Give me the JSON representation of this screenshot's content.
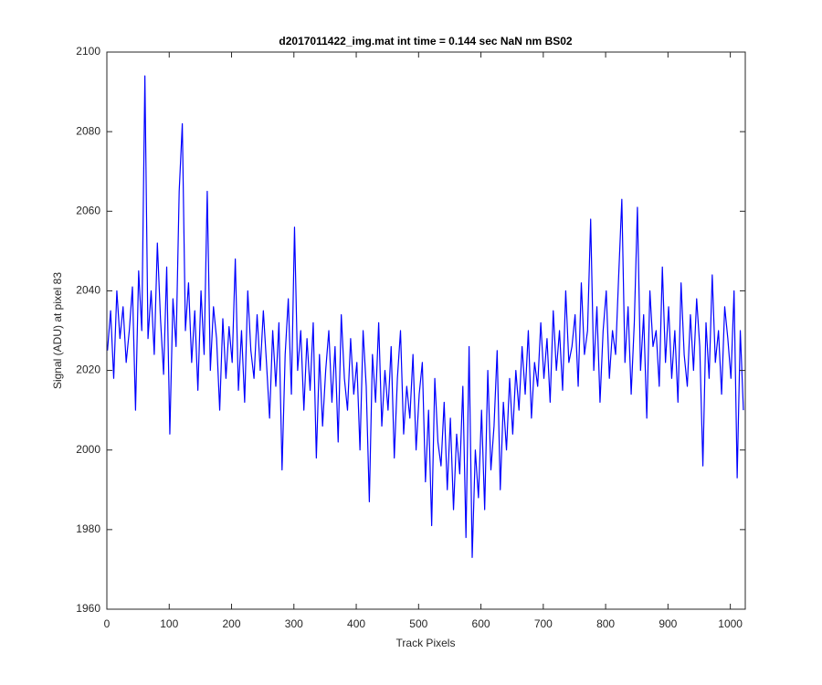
{
  "chart_data": {
    "type": "line",
    "title": "d2017011422_img.mat int time = 0.144 sec  NaN nm BS02",
    "x_label": "Track Pixels",
    "y_label": "Signal (ADU) at pixel 83",
    "xlim": [
      0,
      1024
    ],
    "ylim": [
      1960,
      2100
    ],
    "xticks": [
      0,
      100,
      200,
      300,
      400,
      500,
      600,
      700,
      800,
      900,
      1000
    ],
    "yticks": [
      1960,
      1980,
      2000,
      2020,
      2040,
      2060,
      2080,
      2100
    ],
    "x": [
      1,
      6,
      11,
      16,
      21,
      26,
      31,
      36,
      41,
      46,
      51,
      56,
      61,
      66,
      71,
      76,
      81,
      86,
      91,
      96,
      101,
      106,
      111,
      116,
      121,
      126,
      131,
      136,
      141,
      146,
      151,
      156,
      161,
      166,
      171,
      176,
      181,
      186,
      191,
      196,
      201,
      206,
      211,
      216,
      221,
      226,
      231,
      236,
      241,
      246,
      251,
      256,
      261,
      266,
      271,
      276,
      281,
      286,
      291,
      296,
      301,
      306,
      311,
      316,
      321,
      326,
      331,
      336,
      341,
      346,
      351,
      356,
      361,
      366,
      371,
      376,
      381,
      386,
      391,
      396,
      401,
      406,
      411,
      416,
      421,
      426,
      431,
      436,
      441,
      446,
      451,
      456,
      461,
      466,
      471,
      476,
      481,
      486,
      491,
      496,
      501,
      506,
      511,
      516,
      521,
      526,
      531,
      536,
      541,
      546,
      551,
      556,
      561,
      566,
      571,
      576,
      581,
      586,
      591,
      596,
      601,
      606,
      611,
      616,
      621,
      626,
      631,
      636,
      641,
      646,
      651,
      656,
      661,
      666,
      671,
      676,
      681,
      686,
      691,
      696,
      701,
      706,
      711,
      716,
      721,
      726,
      731,
      736,
      741,
      746,
      751,
      756,
      761,
      766,
      771,
      776,
      781,
      786,
      791,
      796,
      801,
      806,
      811,
      816,
      821,
      826,
      831,
      836,
      841,
      846,
      851,
      856,
      861,
      866,
      871,
      876,
      881,
      886,
      891,
      896,
      901,
      906,
      911,
      916,
      921,
      926,
      931,
      936,
      941,
      946,
      951,
      956,
      961,
      966,
      971,
      976,
      981,
      986,
      991,
      996,
      1001,
      1006,
      1011,
      1016,
      1021
    ],
    "series": [
      {
        "name": "signal",
        "color": "#0000ff",
        "values": [
          2025,
          2035,
          2018,
          2040,
          2028,
          2036,
          2022,
          2030,
          2041,
          2010,
          2045,
          2030,
          2094,
          2028,
          2040,
          2024,
          2052,
          2033,
          2019,
          2046,
          2004,
          2038,
          2026,
          2065,
          2082,
          2030,
          2042,
          2022,
          2035,
          2015,
          2040,
          2024,
          2065,
          2020,
          2036,
          2028,
          2010,
          2033,
          2018,
          2031,
          2022,
          2048,
          2015,
          2030,
          2012,
          2040,
          2025,
          2018,
          2034,
          2020,
          2035,
          2022,
          2008,
          2030,
          2016,
          2032,
          1995,
          2024,
          2038,
          2014,
          2056,
          2020,
          2030,
          2010,
          2028,
          2015,
          2032,
          1998,
          2024,
          2006,
          2020,
          2030,
          2012,
          2026,
          2002,
          2034,
          2018,
          2010,
          2028,
          2014,
          2022,
          2000,
          2030,
          2016,
          1987,
          2024,
          2012,
          2032,
          2006,
          2020,
          2010,
          2026,
          1998,
          2018,
          2030,
          2004,
          2016,
          2008,
          2024,
          2000,
          2014,
          2022,
          1992,
          2010,
          1981,
          2018,
          2002,
          1996,
          2012,
          1990,
          2008,
          1985,
          2004,
          1994,
          2016,
          1978,
          2026,
          1973,
          2000,
          1988,
          2010,
          1985,
          2020,
          1995,
          2006,
          2025,
          1990,
          2012,
          2000,
          2018,
          2004,
          2020,
          2010,
          2026,
          2014,
          2030,
          2008,
          2022,
          2016,
          2032,
          2018,
          2028,
          2012,
          2035,
          2020,
          2030,
          2015,
          2040,
          2022,
          2026,
          2034,
          2016,
          2042,
          2024,
          2030,
          2058,
          2020,
          2036,
          2012,
          2030,
          2040,
          2018,
          2030,
          2024,
          2044,
          2063,
          2022,
          2036,
          2014,
          2032,
          2061,
          2020,
          2034,
          2008,
          2040,
          2026,
          2030,
          2016,
          2046,
          2022,
          2036,
          2018,
          2030,
          2012,
          2042,
          2024,
          2016,
          2034,
          2020,
          2038,
          2026,
          1996,
          2032,
          2018,
          2044,
          2022,
          2030,
          2014,
          2036,
          2028,
          2018,
          2040,
          1993,
          2030,
          2010
        ]
      }
    ]
  }
}
